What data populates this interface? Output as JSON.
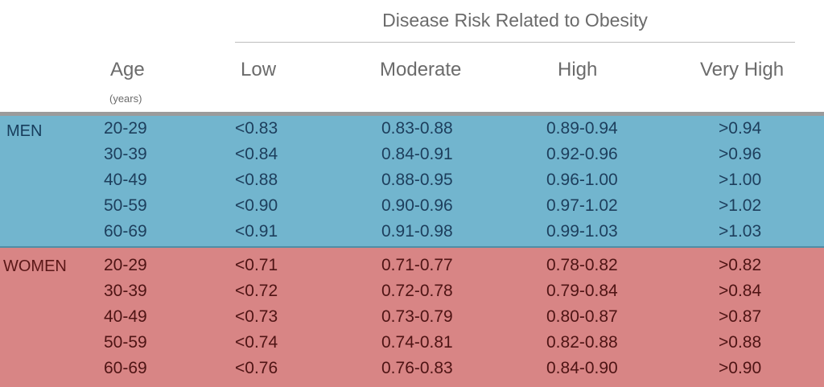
{
  "header": {
    "super_title": "Disease Risk Related to Obesity",
    "age_label": "Age",
    "age_unit": "(years)",
    "columns": [
      "Low",
      "Moderate",
      "High",
      "Very High"
    ]
  },
  "groups": [
    {
      "label": "MEN",
      "rows": [
        {
          "age": "20-29",
          "low": "<0.83",
          "moderate": "0.83-0.88",
          "high": "0.89-0.94",
          "very_high": ">0.94"
        },
        {
          "age": "30-39",
          "low": "<0.84",
          "moderate": "0.84-0.91",
          "high": "0.92-0.96",
          "very_high": ">0.96"
        },
        {
          "age": "40-49",
          "low": "<0.88",
          "moderate": "0.88-0.95",
          "high": "0.96-1.00",
          "very_high": ">1.00"
        },
        {
          "age": "50-59",
          "low": "<0.90",
          "moderate": "0.90-0.96",
          "high": "0.97-1.02",
          "very_high": ">1.02"
        },
        {
          "age": "60-69",
          "low": "<0.91",
          "moderate": "0.91-0.98",
          "high": "0.99-1.03",
          "very_high": ">1.03"
        }
      ]
    },
    {
      "label": "WOMEN",
      "rows": [
        {
          "age": "20-29",
          "low": "<0.71",
          "moderate": "0.71-0.77",
          "high": "0.78-0.82",
          "very_high": ">0.82"
        },
        {
          "age": "30-39",
          "low": "<0.72",
          "moderate": "0.72-0.78",
          "high": "0.79-0.84",
          "very_high": ">0.84"
        },
        {
          "age": "40-49",
          "low": "<0.73",
          "moderate": "0.73-0.79",
          "high": "0.80-0.87",
          "very_high": ">0.87"
        },
        {
          "age": "50-59",
          "low": "<0.74",
          "moderate": "0.74-0.81",
          "high": "0.82-0.88",
          "very_high": ">0.88"
        },
        {
          "age": "60-69",
          "low": "<0.76",
          "moderate": "0.76-0.83",
          "high": "0.84-0.90",
          "very_high": ">0.90"
        }
      ]
    }
  ],
  "colors": {
    "men_background": "#72b5ce",
    "women_background": "#d88585",
    "header_text": "#6b6b6b"
  }
}
